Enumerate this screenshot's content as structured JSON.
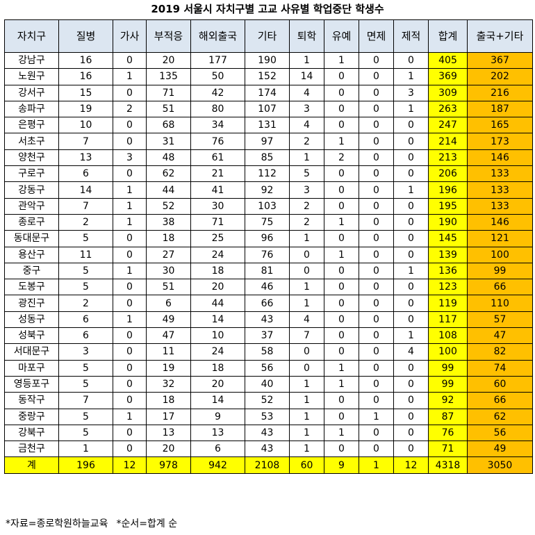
{
  "title": "2019 서울시 자치구별 고교 사유별 학업중단 학생수",
  "table": {
    "headers": [
      "자치구",
      "질병",
      "가사",
      "부적응",
      "해외출국",
      "기타",
      "퇴학",
      "유예",
      "면제",
      "제적",
      "합계",
      "출국+기타"
    ],
    "rows": [
      [
        "강남구",
        "16",
        "0",
        "20",
        "177",
        "190",
        "1",
        "1",
        "0",
        "0",
        "405",
        "367"
      ],
      [
        "노원구",
        "16",
        "1",
        "135",
        "50",
        "152",
        "14",
        "0",
        "0",
        "1",
        "369",
        "202"
      ],
      [
        "강서구",
        "15",
        "0",
        "71",
        "42",
        "174",
        "4",
        "0",
        "0",
        "3",
        "309",
        "216"
      ],
      [
        "송파구",
        "19",
        "2",
        "51",
        "80",
        "107",
        "3",
        "0",
        "0",
        "1",
        "263",
        "187"
      ],
      [
        "은평구",
        "10",
        "0",
        "68",
        "34",
        "131",
        "4",
        "0",
        "0",
        "0",
        "247",
        "165"
      ],
      [
        "서초구",
        "7",
        "0",
        "31",
        "76",
        "97",
        "2",
        "1",
        "0",
        "0",
        "214",
        "173"
      ],
      [
        "양천구",
        "13",
        "3",
        "48",
        "61",
        "85",
        "1",
        "2",
        "0",
        "0",
        "213",
        "146"
      ],
      [
        "구로구",
        "6",
        "0",
        "62",
        "21",
        "112",
        "5",
        "0",
        "0",
        "0",
        "206",
        "133"
      ],
      [
        "강동구",
        "14",
        "1",
        "44",
        "41",
        "92",
        "3",
        "0",
        "0",
        "1",
        "196",
        "133"
      ],
      [
        "관악구",
        "7",
        "1",
        "52",
        "30",
        "103",
        "2",
        "0",
        "0",
        "0",
        "195",
        "133"
      ],
      [
        "종로구",
        "2",
        "1",
        "38",
        "71",
        "75",
        "2",
        "1",
        "0",
        "0",
        "190",
        "146"
      ],
      [
        "동대문구",
        "5",
        "0",
        "18",
        "25",
        "96",
        "1",
        "0",
        "0",
        "0",
        "145",
        "121"
      ],
      [
        "용산구",
        "11",
        "0",
        "27",
        "24",
        "76",
        "0",
        "1",
        "0",
        "0",
        "139",
        "100"
      ],
      [
        "중구",
        "5",
        "1",
        "30",
        "18",
        "81",
        "0",
        "0",
        "0",
        "1",
        "136",
        "99"
      ],
      [
        "도봉구",
        "5",
        "0",
        "51",
        "20",
        "46",
        "1",
        "0",
        "0",
        "0",
        "123",
        "66"
      ],
      [
        "광진구",
        "2",
        "0",
        "6",
        "44",
        "66",
        "1",
        "0",
        "0",
        "0",
        "119",
        "110"
      ],
      [
        "성동구",
        "6",
        "1",
        "49",
        "14",
        "43",
        "4",
        "0",
        "0",
        "0",
        "117",
        "57"
      ],
      [
        "성북구",
        "6",
        "0",
        "47",
        "10",
        "37",
        "7",
        "0",
        "0",
        "1",
        "108",
        "47"
      ],
      [
        "서대문구",
        "3",
        "0",
        "11",
        "24",
        "58",
        "0",
        "0",
        "0",
        "4",
        "100",
        "82"
      ],
      [
        "마포구",
        "5",
        "0",
        "19",
        "18",
        "56",
        "0",
        "1",
        "0",
        "0",
        "99",
        "74"
      ],
      [
        "영등포구",
        "5",
        "0",
        "32",
        "20",
        "40",
        "1",
        "1",
        "0",
        "0",
        "99",
        "60"
      ],
      [
        "동작구",
        "7",
        "0",
        "18",
        "14",
        "52",
        "1",
        "0",
        "0",
        "0",
        "92",
        "66"
      ],
      [
        "중랑구",
        "5",
        "1",
        "17",
        "9",
        "53",
        "1",
        "0",
        "1",
        "0",
        "87",
        "62"
      ],
      [
        "강북구",
        "5",
        "0",
        "13",
        "13",
        "43",
        "1",
        "1",
        "0",
        "0",
        "76",
        "56"
      ],
      [
        "금천구",
        "1",
        "0",
        "20",
        "6",
        "43",
        "1",
        "0",
        "0",
        "0",
        "71",
        "49"
      ]
    ],
    "total": [
      "계",
      "196",
      "12",
      "978",
      "942",
      "2108",
      "60",
      "9",
      "1",
      "12",
      "4318",
      "3050"
    ]
  },
  "footer": {
    "source": "*자료=종로학원하늘교육",
    "order": "*순서=합계 순"
  },
  "colors": {
    "header_bg": "#dce6f1",
    "sum_highlight": "#ffff00",
    "combo_highlight": "#ffc000"
  }
}
